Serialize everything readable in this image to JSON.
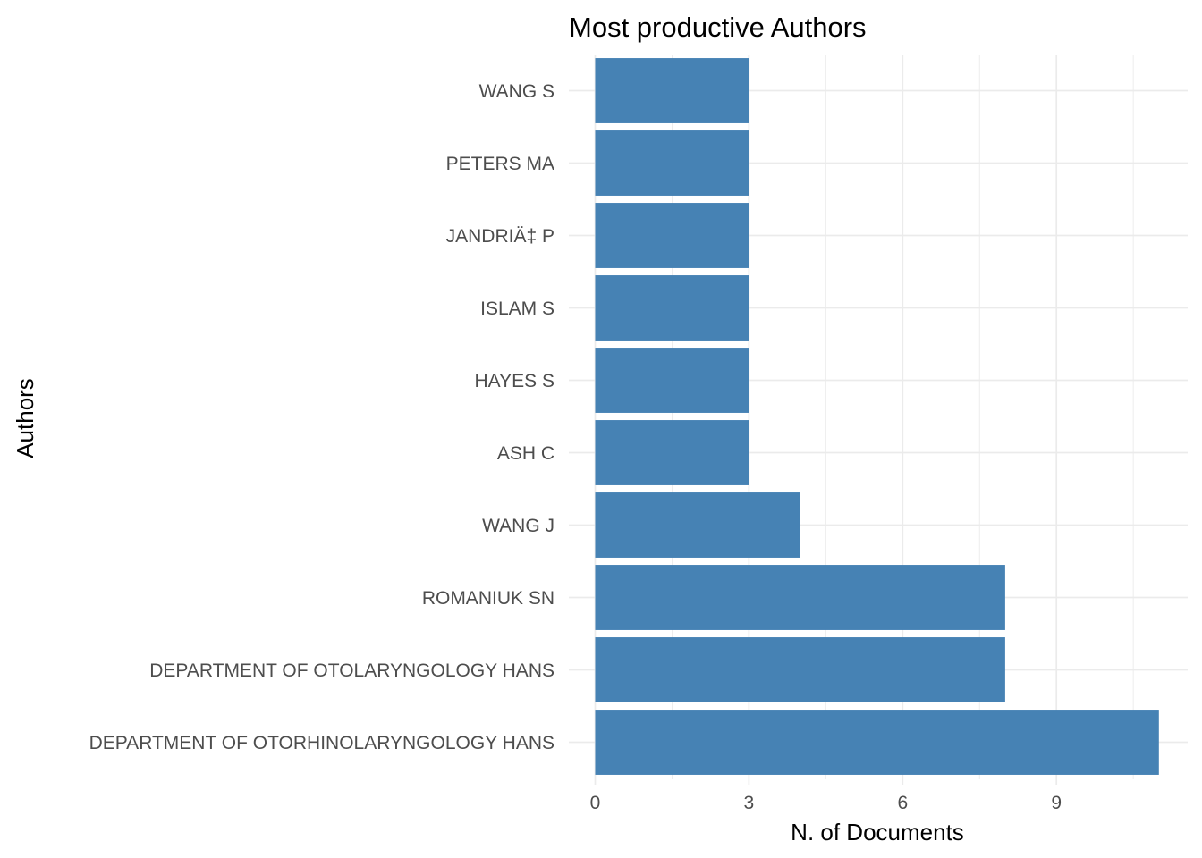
{
  "chart_data": {
    "type": "bar",
    "orientation": "horizontal",
    "title": "Most productive Authors",
    "xlabel": "N. of Documents",
    "ylabel": "Authors",
    "categories": [
      "WANG S",
      "PETERS MA",
      "JANDRIÄ‡ P",
      "ISLAM S",
      "HAYES S",
      "ASH C",
      "WANG J",
      "ROMANIUK SN",
      "DEPARTMENT OF OTOLARYNGOLOGY HANS",
      "DEPARTMENT OF OTORHINOLARYNGOLOGY HANS"
    ],
    "values": [
      3,
      3,
      3,
      3,
      3,
      3,
      4,
      8,
      8,
      11
    ],
    "xlim": [
      0,
      11.55
    ],
    "xticks": [
      0,
      3,
      6,
      9
    ],
    "xtick_labels": [
      "0",
      "3",
      "6",
      "9"
    ],
    "grid": true,
    "legend": false,
    "bar_color": "#4682b4"
  }
}
